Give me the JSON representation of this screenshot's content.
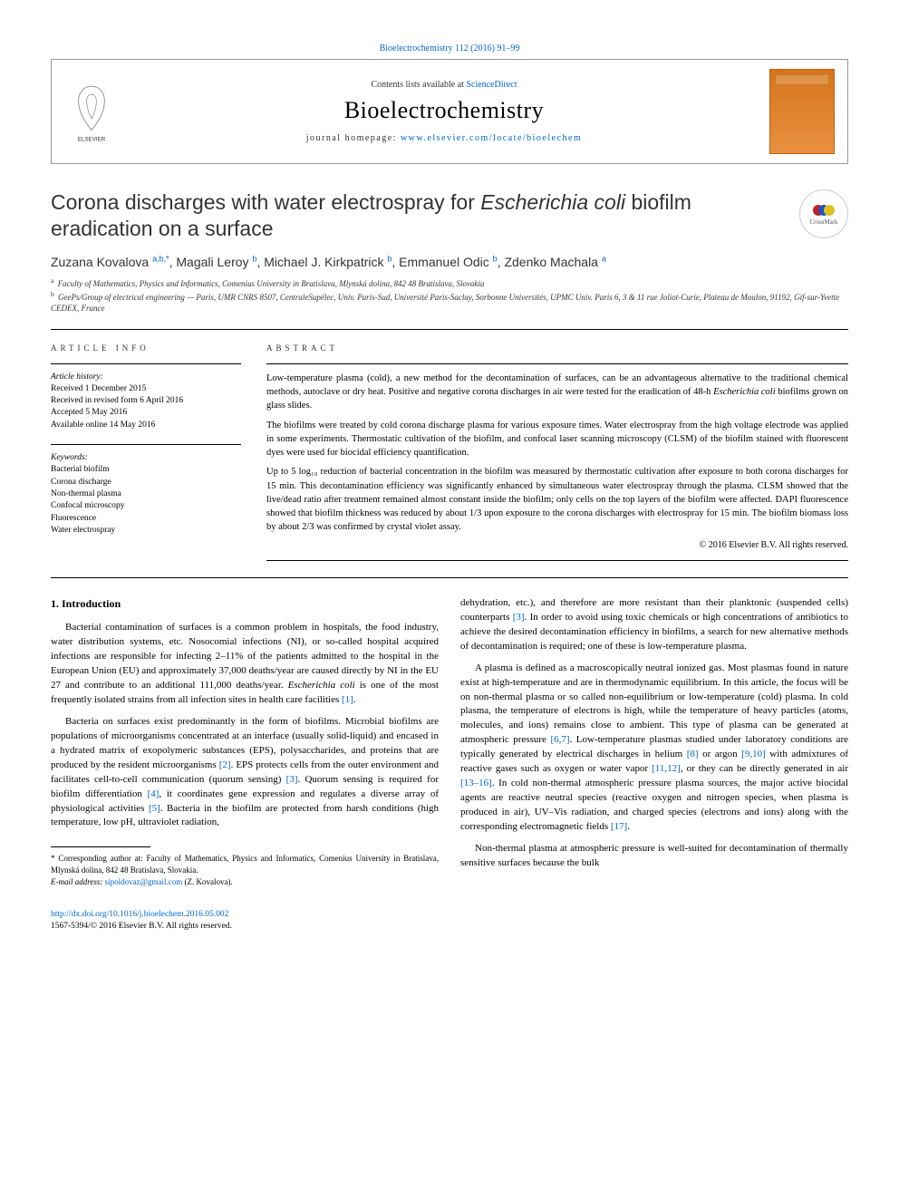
{
  "topCitation": "Bioelectrochemistry 112 (2016) 91–99",
  "header": {
    "contentsPrefix": "Contents lists available at ",
    "contentsLink": "ScienceDirect",
    "journal": "Bioelectrochemistry",
    "homepagePrefix": "journal homepage: ",
    "homepageUrl": "www.elsevier.com/locate/bioelechem",
    "elsevierAlt": "ELSEVIER"
  },
  "title": {
    "pre": "Corona discharges with water electrospray for ",
    "italic": "Escherichia coli",
    "post": " biofilm eradication on a surface"
  },
  "crossmarkLabel": "CrossMark",
  "authors": [
    {
      "name": "Zuzana Kovalova ",
      "affil": "a,b,",
      "corr": "*"
    },
    {
      "name": ", Magali Leroy ",
      "affil": "b",
      "corr": ""
    },
    {
      "name": ", Michael J. Kirkpatrick ",
      "affil": "b",
      "corr": ""
    },
    {
      "name": ", Emmanuel Odic ",
      "affil": "b",
      "corr": ""
    },
    {
      "name": ", Zdenko Machala ",
      "affil": "a",
      "corr": ""
    }
  ],
  "affiliations": [
    {
      "label": "a",
      "text": "Faculty of Mathematics, Physics and Informatics, Comenius University in Bratislava, Mlynská dolina, 842 48 Bratislava, Slovakia"
    },
    {
      "label": "b",
      "text": "GeePs/Group of electrical engineering — Paris, UMR CNRS 8507, CentraleSupélec, Univ. Paris-Sud, Université Paris-Saclay, Sorbonne Universités, UPMC Univ. Paris 6, 3 & 11 rue Joliot-Curie, Plateau de Moulon, 91192, Gif-sur-Yvette CEDEX, France"
    }
  ],
  "info": {
    "heading": "ARTICLE INFO",
    "historyLabel": "Article history:",
    "history": [
      "Received 1 December 2015",
      "Received in revised form 6 April 2016",
      "Accepted 5 May 2016",
      "Available online 14 May 2016"
    ],
    "keywordsLabel": "Keywords:",
    "keywords": [
      "Bacterial biofilm",
      "Corona discharge",
      "Non-thermal plasma",
      "Confocal microscopy",
      "Fluorescence",
      "Water electrospray"
    ]
  },
  "abstract": {
    "heading": "ABSTRACT",
    "paras": [
      "Low-temperature plasma (cold), a new method for the decontamination of surfaces, can be an advantageous alternative to the traditional chemical methods, autoclave or dry heat. Positive and negative corona discharges in air were tested for the eradication of 48-h Escherichia coli biofilms grown on glass slides.",
      "The biofilms were treated by cold corona discharge plasma for various exposure times. Water electrospray from the high voltage electrode was applied in some experiments. Thermostatic cultivation of the biofilm, and confocal laser scanning microscopy (CLSM) of the biofilm stained with fluorescent dyes were used for biocidal efficiency quantification.",
      "Up to 5 log₁₀ reduction of bacterial concentration in the biofilm was measured by thermostatic cultivation after exposure to both corona discharges for 15 min. This decontamination efficiency was significantly enhanced by simultaneous water electrospray through the plasma. CLSM showed that the live/dead ratio after treatment remained almost constant inside the biofilm; only cells on the top layers of the biofilm were affected. DAPI fluorescence showed that biofilm thickness was reduced by about 1/3 upon exposure to the corona discharges with electrospray for 15 min. The biofilm biomass loss by about 2/3 was confirmed by crystal violet assay."
    ],
    "copyright": "© 2016 Elsevier B.V. All rights reserved."
  },
  "body": {
    "sectionHeading": "1. Introduction",
    "leftParas": [
      "Bacterial contamination of surfaces is a common problem in hospitals, the food industry, water distribution systems, etc. Nosocomial infections (NI), or so-called hospital acquired infections are responsible for infecting 2–11% of the patients admitted to the hospital in the European Union (EU) and approximately 37,000 deaths/year are caused directly by NI in the EU 27 and contribute to an additional 111,000 deaths/year. Escherichia coli is one of the most frequently isolated strains from all infection sites in health care facilities [1].",
      "Bacteria on surfaces exist predominantly in the form of biofilms. Microbial biofilms are populations of microorganisms concentrated at an interface (usually solid-liquid) and encased in a hydrated matrix of exopolymeric substances (EPS), polysaccharides, and proteins that are produced by the resident microorganisms [2]. EPS protects cells from the outer environment and facilitates cell-to-cell communication (quorum sensing) [3]. Quorum sensing is required for biofilm differentiation [4], it coordinates gene expression and regulates a diverse array of physiological activities [5]. Bacteria in the biofilm are protected from harsh conditions (high temperature, low pH, ultraviolet radiation,"
    ],
    "rightParas": [
      "dehydration, etc.), and therefore are more resistant than their planktonic (suspended cells) counterparts [3]. In order to avoid using toxic chemicals or high concentrations of antibiotics to achieve the desired decontamination efficiency in biofilms, a search for new alternative methods of decontamination is required; one of these is low-temperature plasma.",
      "A plasma is defined as a macroscopically neutral ionized gas. Most plasmas found in nature exist at high-temperature and are in thermodynamic equilibrium. In this article, the focus will be on non-thermal plasma or so called non-equilibrium or low-temperature (cold) plasma. In cold plasma, the temperature of electrons is high, while the temperature of heavy particles (atoms, molecules, and ions) remains close to ambient. This type of plasma can be generated at atmospheric pressure [6,7]. Low-temperature plasmas studied under laboratory conditions are typically generated by electrical discharges in helium [8] or argon [9,10] with admixtures of reactive gases such as oxygen or water vapor [11,12], or they can be directly generated in air [13–16]. In cold non-thermal atmospheric pressure plasma sources, the major active biocidal agents are reactive neutral species (reactive oxygen and nitrogen species, when plasma is produced in air), UV–Vis radiation, and charged species (electrons and ions) along with the corresponding electromagnetic fields [17].",
      "Non-thermal plasma at atmospheric pressure is well-suited for decontamination of thermally sensitive surfaces because the bulk"
    ]
  },
  "footnote": {
    "corrLine": "* Corresponding author at: Faculty of Mathematics, Physics and Informatics, Comenius University in Bratislava, Mlynská dolina, 842 48 Bratislava, Slovakia.",
    "emailLabel": "E-mail address: ",
    "email": "sipoldovaz@gmail.com",
    "emailSuffix": " (Z. Kovalova)."
  },
  "footer": {
    "doi": "http://dx.doi.org/10.1016/j.bioelechem.2016.05.002",
    "issn": "1567-5394/© 2016 Elsevier B.V. All rights reserved."
  },
  "refs": {
    "r1": "[1]",
    "r2": "[2]",
    "r3": "[3]",
    "r4": "[4]",
    "r5": "[5]",
    "r67": "[6,7]",
    "r8": "[8]",
    "r910": "[9,10]",
    "r1112": "[11,12]",
    "r1316": "[13–16]",
    "r17": "[17]"
  }
}
